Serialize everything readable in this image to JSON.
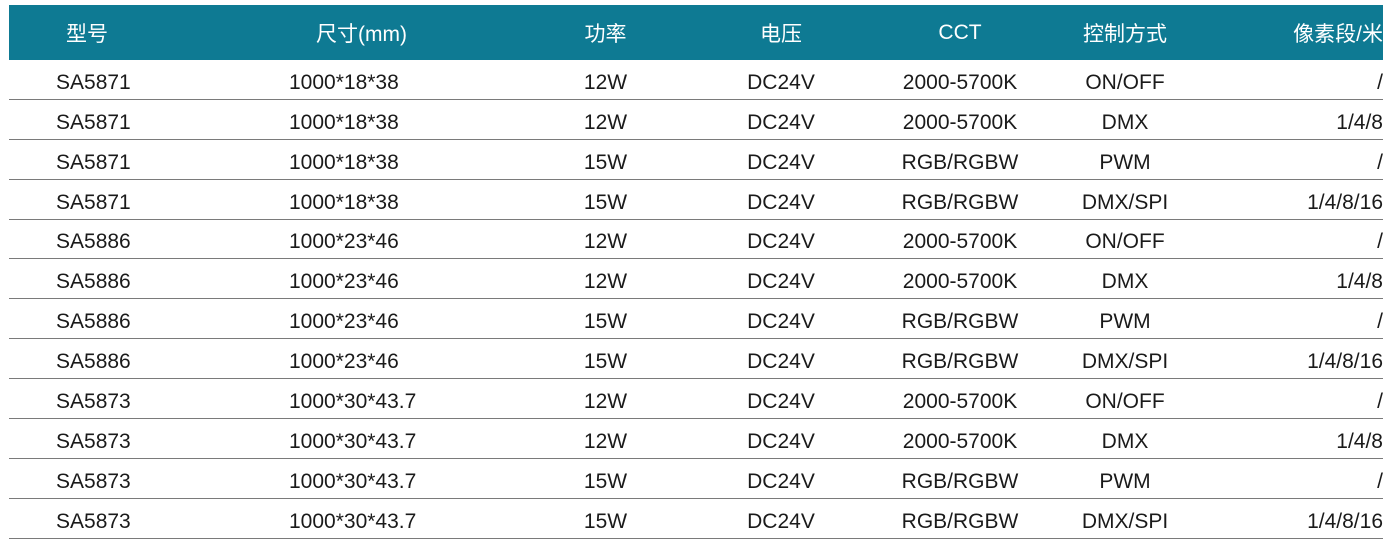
{
  "headers": [
    "型号",
    "尺寸(mm)",
    "功率",
    "电压",
    "CCT",
    "控制方式",
    "像素段/米"
  ],
  "rows": [
    [
      "SA5871",
      "1000*18*38",
      "12W",
      "DC24V",
      "2000-5700K",
      "ON/OFF",
      "/"
    ],
    [
      "SA5871",
      "1000*18*38",
      "12W",
      "DC24V",
      "2000-5700K",
      "DMX",
      "1/4/8"
    ],
    [
      "SA5871",
      "1000*18*38",
      "15W",
      "DC24V",
      "RGB/RGBW",
      "PWM",
      "/"
    ],
    [
      "SA5871",
      "1000*18*38",
      "15W",
      "DC24V",
      "RGB/RGBW",
      "DMX/SPI",
      "1/4/8/16"
    ],
    [
      "SA5886",
      "1000*23*46",
      "12W",
      "DC24V",
      "2000-5700K",
      "ON/OFF",
      "/"
    ],
    [
      "SA5886",
      "1000*23*46",
      "12W",
      "DC24V",
      "2000-5700K",
      "DMX",
      "1/4/8"
    ],
    [
      "SA5886",
      "1000*23*46",
      "15W",
      "DC24V",
      "RGB/RGBW",
      "PWM",
      "/"
    ],
    [
      "SA5886",
      "1000*23*46",
      "15W",
      "DC24V",
      "RGB/RGBW",
      "DMX/SPI",
      "1/4/8/16"
    ],
    [
      "SA5873",
      "1000*30*43.7",
      "12W",
      "DC24V",
      "2000-5700K",
      "ON/OFF",
      "/"
    ],
    [
      "SA5873",
      "1000*30*43.7",
      "12W",
      "DC24V",
      "2000-5700K",
      "DMX",
      "1/4/8"
    ],
    [
      "SA5873",
      "1000*30*43.7",
      "15W",
      "DC24V",
      "RGB/RGBW",
      "PWM",
      "/"
    ],
    [
      "SA5873",
      "1000*30*43.7",
      "15W",
      "DC24V",
      "RGB/RGBW",
      "DMX/SPI",
      "1/4/8/16"
    ]
  ],
  "colors": {
    "header_bg": "#0e7a93",
    "header_text": "#ffffff",
    "divider": "#7a7a7a"
  }
}
